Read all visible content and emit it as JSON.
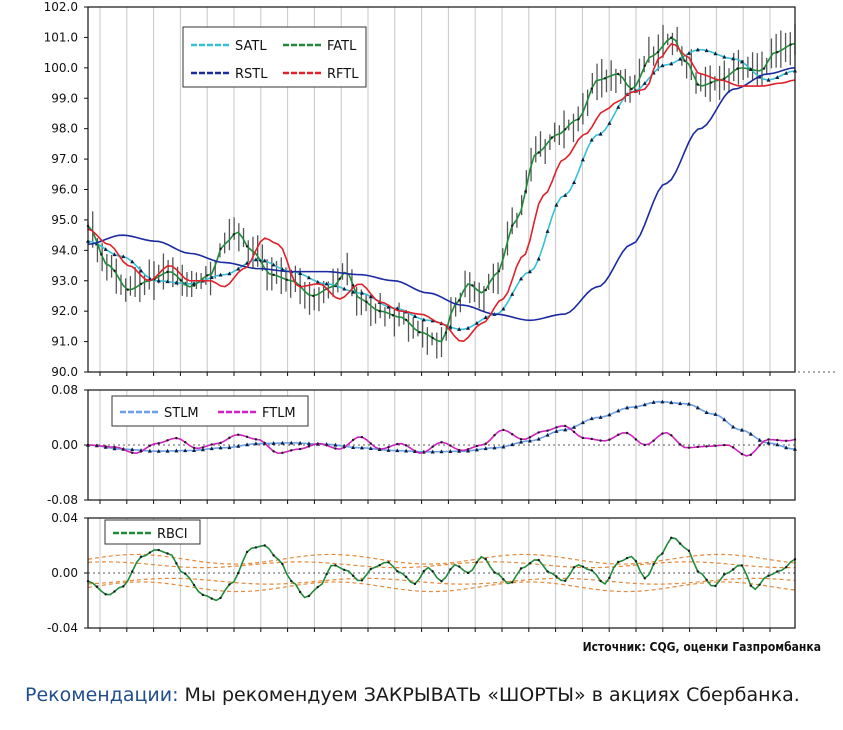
{
  "chart_data": [
    {
      "type": "line",
      "panel": "price",
      "ylim": [
        90.0,
        102.0
      ],
      "y_ticks": [
        "102.0",
        "101.0",
        "100.0",
        "99.0",
        "98.0",
        "97.0",
        "96.0",
        "95.0",
        "94.0",
        "93.0",
        "92.0",
        "91.0",
        "90.0"
      ],
      "grid": "vertical",
      "legend_position": "top-left",
      "legend": [
        "SATL",
        "FATL",
        "RSTL",
        "RFTL"
      ],
      "series": [
        {
          "name": "SATL",
          "color": "#36c0d8",
          "knots": [
            [
              0,
              94.3
            ],
            [
              5,
              93.8
            ],
            [
              10,
              93.0
            ],
            [
              15,
              92.9
            ],
            [
              20,
              93.2
            ],
            [
              25,
              93.7
            ],
            [
              30,
              93.3
            ],
            [
              35,
              92.9
            ],
            [
              40,
              92.6
            ],
            [
              45,
              92.1
            ],
            [
              50,
              91.7
            ],
            [
              55,
              91.4
            ],
            [
              60,
              91.9
            ],
            [
              65,
              93.3
            ],
            [
              70,
              95.8
            ],
            [
              75,
              97.8
            ],
            [
              80,
              99.2
            ],
            [
              85,
              100.1
            ],
            [
              90,
              100.6
            ],
            [
              95,
              100.3
            ],
            [
              100,
              99.6
            ],
            [
              104,
              99.9
            ]
          ]
        },
        {
          "name": "FATL",
          "color": "#1f8a3a",
          "knots": [
            [
              0,
              94.8
            ],
            [
              3,
              93.5
            ],
            [
              6,
              92.7
            ],
            [
              9,
              93.0
            ],
            [
              12,
              93.3
            ],
            [
              15,
              92.8
            ],
            [
              18,
              93.2
            ],
            [
              20,
              94.2
            ],
            [
              22,
              94.6
            ],
            [
              24,
              94.0
            ],
            [
              27,
              93.2
            ],
            [
              30,
              93.0
            ],
            [
              33,
              92.5
            ],
            [
              36,
              92.8
            ],
            [
              38,
              93.3
            ],
            [
              40,
              92.4
            ],
            [
              43,
              92.0
            ],
            [
              46,
              91.8
            ],
            [
              49,
              91.3
            ],
            [
              52,
              91.0
            ],
            [
              54,
              92.2
            ],
            [
              56,
              92.9
            ],
            [
              58,
              92.6
            ],
            [
              60,
              93.2
            ],
            [
              63,
              95.0
            ],
            [
              66,
              97.2
            ],
            [
              69,
              97.8
            ],
            [
              72,
              98.3
            ],
            [
              75,
              99.6
            ],
            [
              78,
              99.8
            ],
            [
              80,
              99.3
            ],
            [
              83,
              100.4
            ],
            [
              86,
              101.0
            ],
            [
              88,
              100.2
            ],
            [
              90,
              99.4
            ],
            [
              93,
              99.6
            ],
            [
              96,
              100.0
            ],
            [
              99,
              99.9
            ],
            [
              101,
              100.5
            ],
            [
              104,
              100.8
            ]
          ]
        },
        {
          "name": "RSTL",
          "color": "#1a2aa0",
          "knots": [
            [
              0,
              94.2
            ],
            [
              5,
              94.5
            ],
            [
              10,
              94.3
            ],
            [
              15,
              93.9
            ],
            [
              20,
              93.6
            ],
            [
              25,
              93.4
            ],
            [
              30,
              93.3
            ],
            [
              35,
              93.3
            ],
            [
              40,
              93.2
            ],
            [
              45,
              93.0
            ],
            [
              50,
              92.6
            ],
            [
              55,
              92.2
            ],
            [
              60,
              91.9
            ],
            [
              65,
              91.7
            ],
            [
              70,
              91.9
            ],
            [
              75,
              92.8
            ],
            [
              80,
              94.2
            ],
            [
              85,
              96.2
            ],
            [
              90,
              98.0
            ],
            [
              95,
              99.3
            ],
            [
              100,
              99.8
            ],
            [
              104,
              100.0
            ]
          ]
        },
        {
          "name": "RFTL",
          "color": "#e0202a",
          "knots": [
            [
              0,
              94.7
            ],
            [
              3,
              94.2
            ],
            [
              6,
              93.5
            ],
            [
              9,
              93.0
            ],
            [
              12,
              93.5
            ],
            [
              15,
              93.0
            ],
            [
              18,
              93.0
            ],
            [
              20,
              92.8
            ],
            [
              23,
              93.4
            ],
            [
              26,
              94.4
            ],
            [
              28,
              94.2
            ],
            [
              31,
              92.8
            ],
            [
              34,
              92.9
            ],
            [
              37,
              92.4
            ],
            [
              40,
              92.9
            ],
            [
              43,
              92.3
            ],
            [
              46,
              92.0
            ],
            [
              49,
              91.9
            ],
            [
              52,
              91.6
            ],
            [
              55,
              91.0
            ],
            [
              58,
              91.6
            ],
            [
              61,
              92.4
            ],
            [
              64,
              93.8
            ],
            [
              67,
              95.8
            ],
            [
              70,
              97.0
            ],
            [
              73,
              97.8
            ],
            [
              76,
              98.6
            ],
            [
              78,
              98.9
            ],
            [
              80,
              99.2
            ],
            [
              82,
              99.3
            ],
            [
              84,
              100.3
            ],
            [
              86,
              100.8
            ],
            [
              88,
              100.4
            ],
            [
              90,
              99.8
            ],
            [
              93,
              99.6
            ],
            [
              96,
              99.4
            ],
            [
              99,
              99.4
            ],
            [
              102,
              99.5
            ],
            [
              104,
              99.6
            ]
          ]
        }
      ]
    },
    {
      "type": "line",
      "panel": "momentum",
      "ylim": [
        -0.08,
        0.08
      ],
      "y_ticks": [
        "0.08",
        "0.00",
        "-0.08"
      ],
      "legend_position": "top-left",
      "legend": [
        "STLM",
        "FTLM"
      ],
      "series": [
        {
          "name": "STLM",
          "color": "#6aa0e8",
          "knots": [
            [
              0,
              0.0
            ],
            [
              5,
              -0.006
            ],
            [
              10,
              -0.009
            ],
            [
              15,
              -0.008
            ],
            [
              20,
              -0.004
            ],
            [
              25,
              0.002
            ],
            [
              30,
              0.003
            ],
            [
              35,
              0.001
            ],
            [
              40,
              -0.004
            ],
            [
              45,
              -0.008
            ],
            [
              50,
              -0.01
            ],
            [
              55,
              -0.009
            ],
            [
              60,
              -0.004
            ],
            [
              65,
              0.006
            ],
            [
              70,
              0.022
            ],
            [
              75,
              0.04
            ],
            [
              80,
              0.055
            ],
            [
              84,
              0.063
            ],
            [
              88,
              0.06
            ],
            [
              92,
              0.045
            ],
            [
              96,
              0.022
            ],
            [
              100,
              0.003
            ],
            [
              104,
              -0.006
            ]
          ]
        },
        {
          "name": "FTLM",
          "color": "#d020c0",
          "knots": [
            [
              0,
              0.0
            ],
            [
              4,
              -0.003
            ],
            [
              7,
              -0.012
            ],
            [
              10,
              0.002
            ],
            [
              13,
              0.01
            ],
            [
              16,
              -0.005
            ],
            [
              19,
              0.002
            ],
            [
              22,
              0.015
            ],
            [
              25,
              0.008
            ],
            [
              28,
              -0.012
            ],
            [
              31,
              -0.006
            ],
            [
              34,
              0.002
            ],
            [
              37,
              -0.006
            ],
            [
              40,
              0.012
            ],
            [
              43,
              -0.006
            ],
            [
              46,
              0.002
            ],
            [
              49,
              -0.012
            ],
            [
              52,
              0.004
            ],
            [
              55,
              -0.008
            ],
            [
              58,
              0.0
            ],
            [
              61,
              0.022
            ],
            [
              64,
              0.008
            ],
            [
              67,
              0.02
            ],
            [
              70,
              0.028
            ],
            [
              73,
              0.01
            ],
            [
              76,
              0.006
            ],
            [
              79,
              0.018
            ],
            [
              82,
              0.0
            ],
            [
              85,
              0.018
            ],
            [
              88,
              -0.004
            ],
            [
              91,
              -0.002
            ],
            [
              94,
              0.0
            ],
            [
              97,
              -0.016
            ],
            [
              100,
              0.008
            ],
            [
              103,
              0.006
            ],
            [
              104,
              0.008
            ]
          ]
        }
      ]
    },
    {
      "type": "line",
      "panel": "rbci",
      "ylim": [
        -0.04,
        0.04
      ],
      "y_ticks": [
        "0.04",
        "0.00",
        "-0.04"
      ],
      "legend_position": "top-left",
      "legend": [
        "RBCI"
      ],
      "series": [
        {
          "name": "RBCI",
          "color": "#1f8a3a",
          "knots": [
            [
              0,
              -0.006
            ],
            [
              3,
              -0.016
            ],
            [
              5,
              -0.01
            ],
            [
              8,
              0.012
            ],
            [
              10,
              0.017
            ],
            [
              12,
              0.014
            ],
            [
              14,
              0.0
            ],
            [
              17,
              -0.016
            ],
            [
              19,
              -0.02
            ],
            [
              21,
              -0.008
            ],
            [
              24,
              0.018
            ],
            [
              26,
              0.02
            ],
            [
              28,
              0.01
            ],
            [
              30,
              -0.006
            ],
            [
              32,
              -0.018
            ],
            [
              34,
              -0.01
            ],
            [
              36,
              0.006
            ],
            [
              38,
              0.002
            ],
            [
              40,
              -0.006
            ],
            [
              42,
              0.004
            ],
            [
              44,
              0.008
            ],
            [
              46,
              0.0
            ],
            [
              48,
              -0.008
            ],
            [
              50,
              0.004
            ],
            [
              52,
              -0.006
            ],
            [
              54,
              0.006
            ],
            [
              56,
              0.0
            ],
            [
              58,
              0.012
            ],
            [
              60,
              0.0
            ],
            [
              62,
              -0.008
            ],
            [
              64,
              0.004
            ],
            [
              66,
              0.01
            ],
            [
              68,
              0.0
            ],
            [
              70,
              -0.006
            ],
            [
              72,
              0.006
            ],
            [
              74,
              0.002
            ],
            [
              76,
              -0.008
            ],
            [
              78,
              0.008
            ],
            [
              80,
              0.012
            ],
            [
              82,
              -0.004
            ],
            [
              84,
              0.012
            ],
            [
              86,
              0.026
            ],
            [
              88,
              0.018
            ],
            [
              90,
              0.0
            ],
            [
              92,
              -0.01
            ],
            [
              94,
              0.0
            ],
            [
              96,
              0.006
            ],
            [
              98,
              -0.012
            ],
            [
              100,
              -0.002
            ],
            [
              102,
              0.002
            ],
            [
              104,
              0.01
            ]
          ]
        }
      ],
      "bands_color": "#e38a3c"
    }
  ],
  "source_text": "Источник: CQG, оценки Газпромбанка",
  "recommendation": {
    "label": "Рекомендации:",
    "text": " Мы рекомендуем ЗАКРЫВАТЬ «ШОРТЫ» в акциях Сбербанка."
  }
}
